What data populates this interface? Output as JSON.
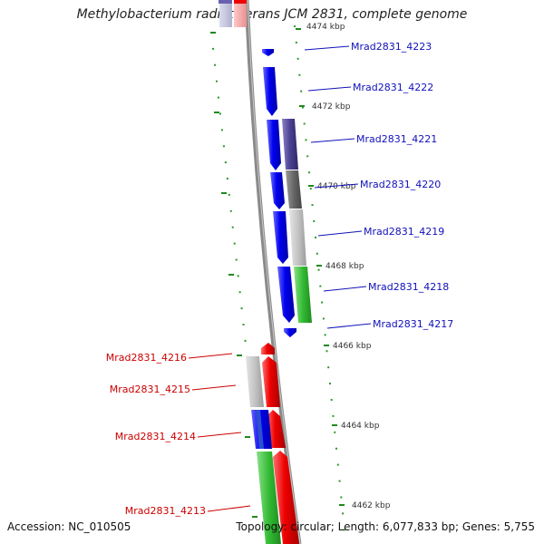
{
  "title": "Methylobacterium radiotolerans JCM 2831, complete genome",
  "footer": {
    "accession": "Accession: NC_010505",
    "summary": "Topology: circular; Length: 6,077,833 bp; Genes: 5,755"
  },
  "colors": {
    "forward_gene": "#0000ee",
    "reverse_gene": "#ee0000",
    "forward_label": "#1111bb",
    "reverse_label": "#cc0000",
    "backbone": "#8a8a8a",
    "tick": "#1e8a1e",
    "cog_purple": "#4a4090",
    "cog_dark_gray": "#666666",
    "cog_light_gray": "#c4c4c4",
    "cog_green": "#33bb33",
    "cog_blue": "#2d4fd0"
  },
  "scale_labels": [
    "4474 kbp",
    "4472 kbp",
    "4470 kbp",
    "4468 kbp",
    "4466 kbp",
    "4464 kbp",
    "4462 kbp"
  ],
  "forward_labels": [
    "Mrad2831_4223",
    "Mrad2831_4222",
    "Mrad2831_4221",
    "Mrad2831_4220",
    "Mrad2831_4219",
    "Mrad2831_4218",
    "Mrad2831_4217"
  ],
  "reverse_labels": [
    "Mrad2831_4216",
    "Mrad2831_4215",
    "Mrad2831_4214",
    "Mrad2831_4213"
  ]
}
